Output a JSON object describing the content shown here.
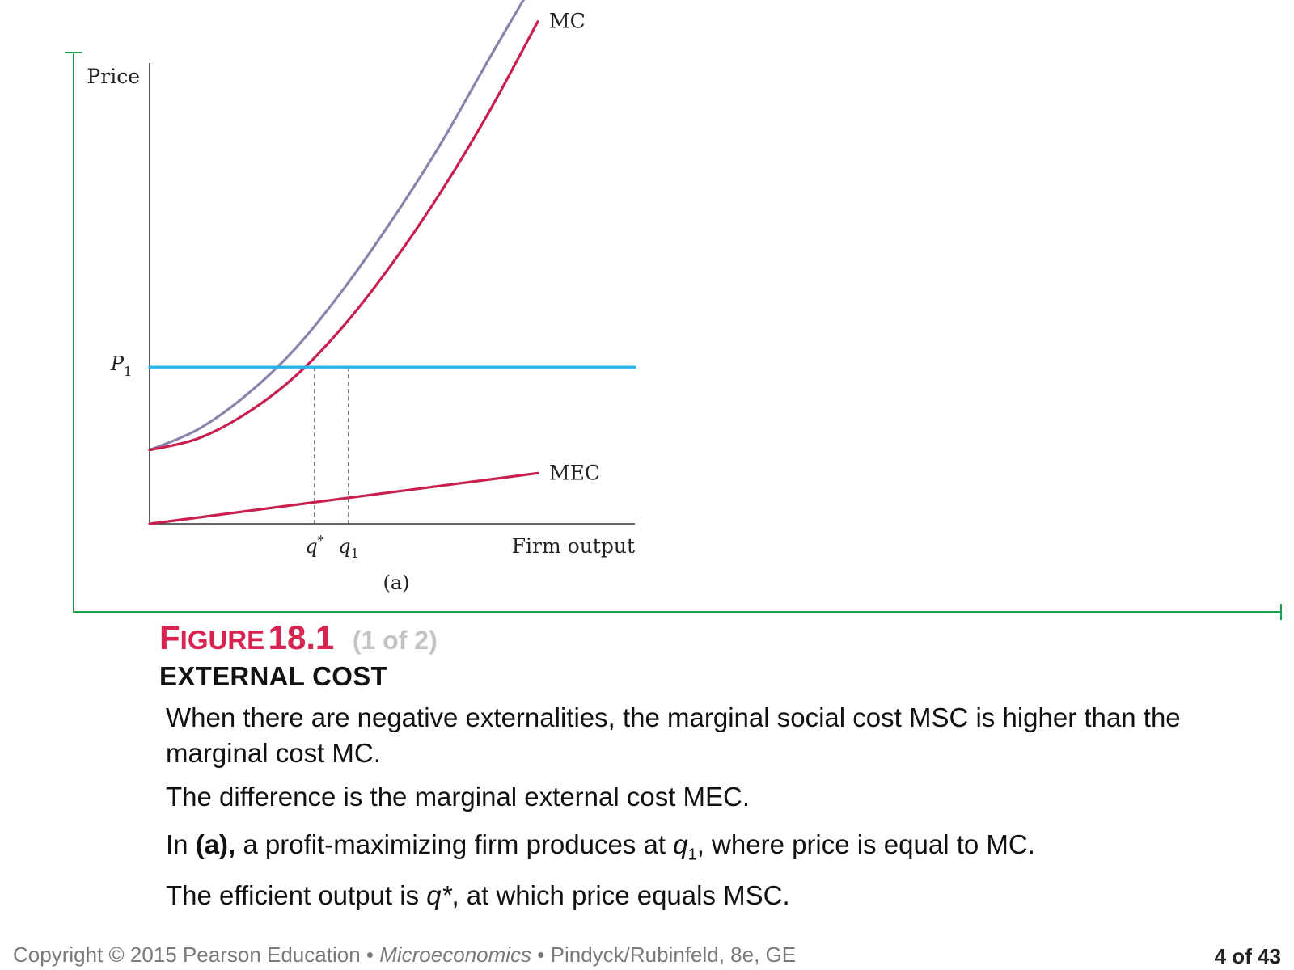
{
  "chart_data": {
    "type": "line",
    "panel_label": "(a)",
    "ylabel": "Price",
    "xlabel": "Firm  output",
    "xlim": [
      0,
      10
    ],
    "ylim": [
      0,
      10
    ],
    "series": [
      {
        "name": "MSC",
        "color": "#8a84ad",
        "x": [
          0,
          1,
          2,
          3,
          4,
          5,
          6,
          7,
          8
        ],
        "y": [
          1.6,
          2.05,
          2.8,
          3.8,
          5.1,
          6.6,
          8.25,
          10.1,
          11.9
        ]
      },
      {
        "name": "MC",
        "color": "#c81f4f",
        "x": [
          0,
          1,
          2,
          3,
          4,
          5,
          6,
          7,
          8
        ],
        "y": [
          1.6,
          1.85,
          2.4,
          3.2,
          4.3,
          5.65,
          7.2,
          8.95,
          10.9
        ]
      },
      {
        "name": "MEC",
        "color": "#c81f4f",
        "x": [
          0,
          8
        ],
        "y": [
          0,
          1.1
        ]
      },
      {
        "name": "P1",
        "color": "#2ab3e8",
        "x": [
          0,
          10
        ],
        "y": [
          3.4,
          3.4
        ]
      }
    ],
    "price_label": {
      "main": "P",
      "sub": "1"
    },
    "markers": [
      {
        "label": "q",
        "sup": "*",
        "x": 3.4
      },
      {
        "label": "q",
        "sub": "1",
        "x": 4.1
      }
    ]
  },
  "figure": {
    "label_cap": "F",
    "label_rest": "IGURE",
    "number": "18.1",
    "part": "(1 of 2)",
    "subtitle": "EXTERNAL COST"
  },
  "caption": {
    "p1": "When there are negative externalities, the marginal social cost MSC is higher than the marginal cost MC.",
    "p2": "The difference is the marginal external cost MEC.",
    "p3_pre": "In ",
    "p3_bold": "(a),",
    "p3_mid": " a profit-maximizing firm produces at ",
    "p3_q": "q",
    "p3_sub": "1",
    "p3_post": ", where price is equal to MC.",
    "p4_pre": "The efficient output is ",
    "p4_q": "q*",
    "p4_post": ", at which price equals MSC."
  },
  "footer": {
    "copyright": "Copyright © 2015  Pearson Education",
    "sep": " •  ",
    "book": "Microeconomics",
    "sep2": "  •  ",
    "authors": "Pindyck/Rubinfeld, 8e, GE",
    "page": "4 of 43"
  }
}
